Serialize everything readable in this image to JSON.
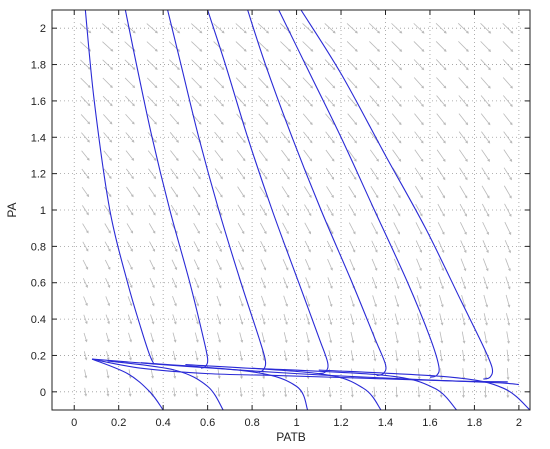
{
  "chart_data": {
    "type": "line",
    "title": "",
    "xlabel": "PATB",
    "ylabel": "PA",
    "xlim": [
      -0.1,
      2.05
    ],
    "ylim": [
      -0.1,
      2.1
    ],
    "x_ticks": [
      0,
      0.2,
      0.4,
      0.6,
      0.8,
      1,
      1.2,
      1.4,
      1.6,
      1.8,
      2
    ],
    "y_ticks": [
      0,
      0.2,
      0.4,
      0.6,
      0.8,
      1,
      1.2,
      1.4,
      1.6,
      1.8,
      2
    ],
    "grid": true,
    "grid_style": "dotted",
    "legend": "none",
    "colors": {
      "trajectory": "#2a2ad6",
      "vector_field": "#b9b9b9",
      "grid": "#9a9a9a"
    },
    "vector_field": {
      "x_range": [
        0.05,
        2.0
      ],
      "y_range": [
        0,
        2.0
      ],
      "x_spacing": 0.1,
      "y_spacing": 0.1
    },
    "series": [
      {
        "x": [
          0.05,
          0.09,
          0.16,
          0.24,
          0.3,
          0.34,
          0.36
        ],
        "y": [
          2.1,
          1.6,
          1.0,
          0.6,
          0.35,
          0.2,
          0.15
        ]
      },
      {
        "x": [
          0.23,
          0.28,
          0.35,
          0.43,
          0.52,
          0.58,
          0.6,
          0.59,
          0.57
        ],
        "y": [
          2.1,
          1.8,
          1.4,
          1.0,
          0.6,
          0.3,
          0.18,
          0.14,
          0.13
        ]
      },
      {
        "x": [
          0.42,
          0.48,
          0.56,
          0.65,
          0.75,
          0.83,
          0.86,
          0.85,
          0.83
        ],
        "y": [
          2.1,
          1.8,
          1.4,
          1.0,
          0.6,
          0.3,
          0.17,
          0.12,
          0.11
        ]
      },
      {
        "x": [
          0.6,
          0.68,
          0.78,
          0.89,
          1.01,
          1.1,
          1.14,
          1.13,
          1.1
        ],
        "y": [
          2.1,
          1.8,
          1.4,
          1.0,
          0.6,
          0.3,
          0.16,
          0.11,
          0.1
        ]
      },
      {
        "x": [
          0.78,
          0.86,
          0.98,
          1.11,
          1.25,
          1.35,
          1.4,
          1.39,
          1.36
        ],
        "y": [
          2.1,
          1.8,
          1.4,
          1.0,
          0.6,
          0.3,
          0.15,
          0.1,
          0.09
        ]
      },
      {
        "x": [
          0.92,
          1.06,
          1.2,
          1.35,
          1.5,
          1.6,
          1.64,
          1.63,
          1.6
        ],
        "y": [
          2.1,
          1.75,
          1.4,
          1.0,
          0.6,
          0.3,
          0.14,
          0.09,
          0.08
        ]
      },
      {
        "x": [
          1.02,
          1.2,
          1.4,
          1.58,
          1.74,
          1.84,
          1.88,
          1.87,
          1.84
        ],
        "y": [
          2.1,
          1.75,
          1.3,
          0.9,
          0.5,
          0.25,
          0.13,
          0.08,
          0.07
        ]
      },
      {
        "x": [
          0.08,
          0.5,
          1.0,
          1.5,
          1.9,
          2.0
        ],
        "y": [
          0.18,
          0.14,
          0.1,
          0.07,
          0.05,
          0.04
        ]
      },
      {
        "x": [
          0.08,
          0.3,
          0.6,
          0.9,
          1.3,
          1.7,
          1.95
        ],
        "y": [
          0.18,
          0.13,
          0.1,
          0.09,
          0.075,
          0.06,
          0.055
        ]
      },
      {
        "x": [
          0.08,
          0.24,
          0.34,
          0.4
        ],
        "y": [
          0.18,
          0.1,
          0.0,
          -0.1
        ]
      },
      {
        "x": [
          0.15,
          0.45,
          0.6,
          0.67
        ],
        "y": [
          0.17,
          0.12,
          0.03,
          -0.1
        ]
      },
      {
        "x": [
          0.3,
          0.8,
          1.0,
          1.05
        ],
        "y": [
          0.16,
          0.11,
          0.03,
          -0.1
        ]
      },
      {
        "x": [
          0.5,
          1.1,
          1.3,
          1.38
        ],
        "y": [
          0.15,
          0.1,
          0.02,
          -0.1
        ]
      },
      {
        "x": [
          0.8,
          1.4,
          1.62,
          1.72
        ],
        "y": [
          0.13,
          0.09,
          0.02,
          -0.1
        ]
      },
      {
        "x": [
          1.1,
          1.7,
          1.93,
          2.05
        ],
        "y": [
          0.12,
          0.08,
          0.02,
          -0.1
        ]
      }
    ]
  }
}
